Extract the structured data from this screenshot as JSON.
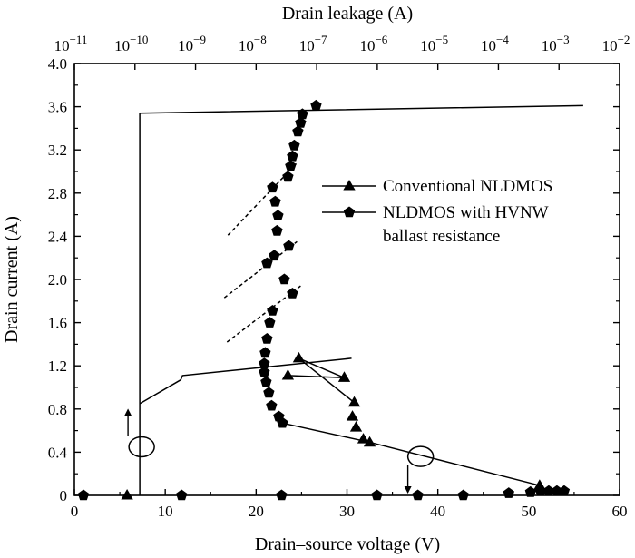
{
  "chart_data": {
    "type": "line",
    "xlabel": "Drain–source voltage (V)",
    "ylabel": "Drain current (A)",
    "top_xlabel": "Drain leakage (A)",
    "xlim": [
      0,
      60
    ],
    "ylim": [
      0,
      4.0
    ],
    "xticks": [
      "0",
      "10",
      "20",
      "30",
      "40",
      "50",
      "60"
    ],
    "yticks": [
      "0",
      "0.4",
      "0.8",
      "1.2",
      "1.6",
      "2.0",
      "2.4",
      "2.8",
      "3.2",
      "3.6",
      "4.0"
    ],
    "top_xlim_log10": [
      -11,
      -2
    ],
    "top_xticks": [
      {
        "base": "10",
        "exp": "−11"
      },
      {
        "base": "10",
        "exp": "−10"
      },
      {
        "base": "10",
        "exp": "−9"
      },
      {
        "base": "10",
        "exp": "−8"
      },
      {
        "base": "10",
        "exp": "−7"
      },
      {
        "base": "10",
        "exp": "−6"
      },
      {
        "base": "10",
        "exp": "−5"
      },
      {
        "base": "10",
        "exp": "−4"
      },
      {
        "base": "10",
        "exp": "−3"
      },
      {
        "base": "10",
        "exp": "−2"
      }
    ],
    "legend": [
      {
        "label": "Conventional NLDMOS",
        "marker": "triangle"
      },
      {
        "label": "NLDMOS with HVNW",
        "label2": "ballast resistance",
        "marker": "pentagon"
      }
    ],
    "legend_position": "right-middle",
    "series": [
      {
        "marker": "triangle",
        "axis": "bottom",
        "points": [
          [
            5.8,
            0.0
          ],
          [
            51.2,
            0.09
          ],
          [
            32.5,
            0.49
          ],
          [
            31.8,
            0.52
          ],
          [
            31.0,
            0.63
          ],
          [
            30.6,
            0.73
          ],
          [
            30.8,
            0.86
          ],
          [
            23.5,
            1.11
          ],
          [
            29.7,
            1.09
          ],
          [
            24.7,
            1.27
          ]
        ]
      },
      {
        "marker": "pentagon",
        "axis": "bottom",
        "points": [
          [
            22.9,
            0.67
          ],
          [
            22.5,
            0.73
          ],
          [
            21.7,
            0.83
          ],
          [
            21.4,
            0.95
          ],
          [
            21.1,
            1.05
          ],
          [
            20.9,
            1.14
          ],
          [
            20.9,
            1.22
          ],
          [
            21.0,
            1.32
          ],
          [
            21.2,
            1.45
          ],
          [
            21.5,
            1.6
          ],
          [
            21.8,
            1.71
          ],
          [
            24.0,
            1.87
          ],
          [
            23.1,
            2.0
          ],
          [
            21.2,
            2.15
          ],
          [
            22.0,
            2.22
          ],
          [
            23.6,
            2.31
          ],
          [
            22.3,
            2.45
          ],
          [
            22.4,
            2.59
          ],
          [
            22.1,
            2.72
          ],
          [
            21.8,
            2.85
          ],
          [
            23.5,
            2.95
          ],
          [
            23.8,
            3.05
          ],
          [
            24.0,
            3.14
          ],
          [
            24.2,
            3.24
          ],
          [
            24.6,
            3.37
          ],
          [
            24.9,
            3.45
          ],
          [
            25.1,
            3.53
          ],
          [
            26.6,
            3.61
          ]
        ]
      },
      {
        "marker": "pentagon",
        "axis": "bottom",
        "points": [
          [
            1.0,
            0.0
          ],
          [
            11.8,
            0.0
          ],
          [
            22.8,
            0.0
          ],
          [
            33.3,
            0.0
          ],
          [
            37.8,
            0.0
          ],
          [
            42.8,
            0.0
          ],
          [
            47.8,
            0.02
          ],
          [
            50.2,
            0.03
          ],
          [
            51.3,
            0.04
          ],
          [
            52.2,
            0.04
          ],
          [
            53.1,
            0.04
          ],
          [
            53.9,
            0.04
          ]
        ]
      }
    ],
    "lines": [
      {
        "style": "solid",
        "points": [
          [
            22.9,
            0.67
          ],
          [
            32.6,
            0.49
          ],
          [
            51.3,
            0.09
          ]
        ]
      },
      {
        "style": "solid",
        "points": [
          [
            23.5,
            1.11
          ],
          [
            29.7,
            1.09
          ],
          [
            24.7,
            1.27
          ],
          [
            30.8,
            0.86
          ]
        ]
      },
      {
        "style": "solid",
        "points": [
          [
            7.2,
            0.0
          ],
          [
            7.2,
            3.54
          ],
          [
            56.0,
            3.61
          ]
        ]
      },
      {
        "style": "solid",
        "points": [
          [
            7.2,
            0.85
          ],
          [
            11.7,
            1.07
          ],
          [
            11.9,
            1.11
          ],
          [
            30.5,
            1.27
          ]
        ]
      },
      {
        "style": "dashed",
        "points": [
          [
            16.8,
            1.42
          ],
          [
            24.9,
            1.94
          ]
        ]
      },
      {
        "style": "dashed",
        "points": [
          [
            16.5,
            1.83
          ],
          [
            24.5,
            2.35
          ]
        ]
      },
      {
        "style": "dashed",
        "points": [
          [
            16.9,
            2.41
          ],
          [
            24.5,
            3.08
          ]
        ]
      }
    ],
    "annotations": [
      {
        "shape": "ellipse",
        "center": [
          7.4,
          0.45
        ],
        "direction": "up",
        "arrow_from": [
          5.9,
          0.55
        ],
        "arrow_to": [
          5.9,
          0.77
        ]
      },
      {
        "shape": "ellipse",
        "center": [
          38.1,
          0.36
        ],
        "direction": "down",
        "arrow_from": [
          36.7,
          0.28
        ],
        "arrow_to": [
          36.7,
          0.05
        ]
      }
    ],
    "grid": false
  }
}
